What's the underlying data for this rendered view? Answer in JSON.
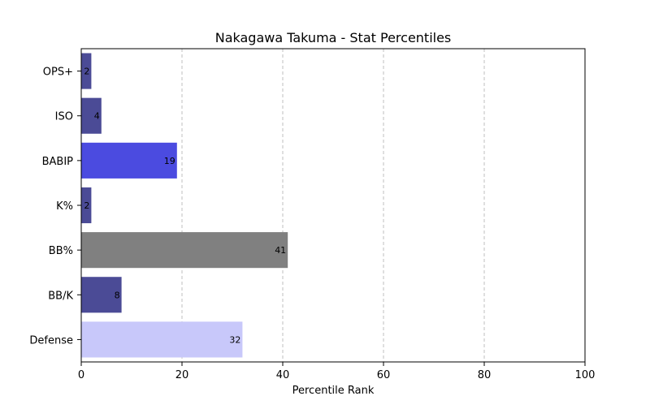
{
  "chart_data": {
    "type": "bar",
    "orientation": "horizontal",
    "title": "Nakagawa Takuma - Stat Percentiles",
    "xlabel": "Percentile Rank",
    "ylabel": "",
    "xlim": [
      0,
      100
    ],
    "xticks": [
      0,
      20,
      40,
      60,
      80,
      100
    ],
    "grid": "x-dashed",
    "categories": [
      "OPS+",
      "ISO",
      "BABIP",
      "K%",
      "BB%",
      "BB/K",
      "Defense"
    ],
    "values": [
      2,
      4,
      19,
      2,
      41,
      8,
      32
    ],
    "value_labels": [
      "2",
      "4",
      "19",
      "2",
      "41",
      "8",
      "32"
    ],
    "colors": [
      "#4b4b96",
      "#4b4b96",
      "#4b4be0",
      "#4b4b96",
      "#808080",
      "#4b4b96",
      "#c8c8fa"
    ]
  }
}
